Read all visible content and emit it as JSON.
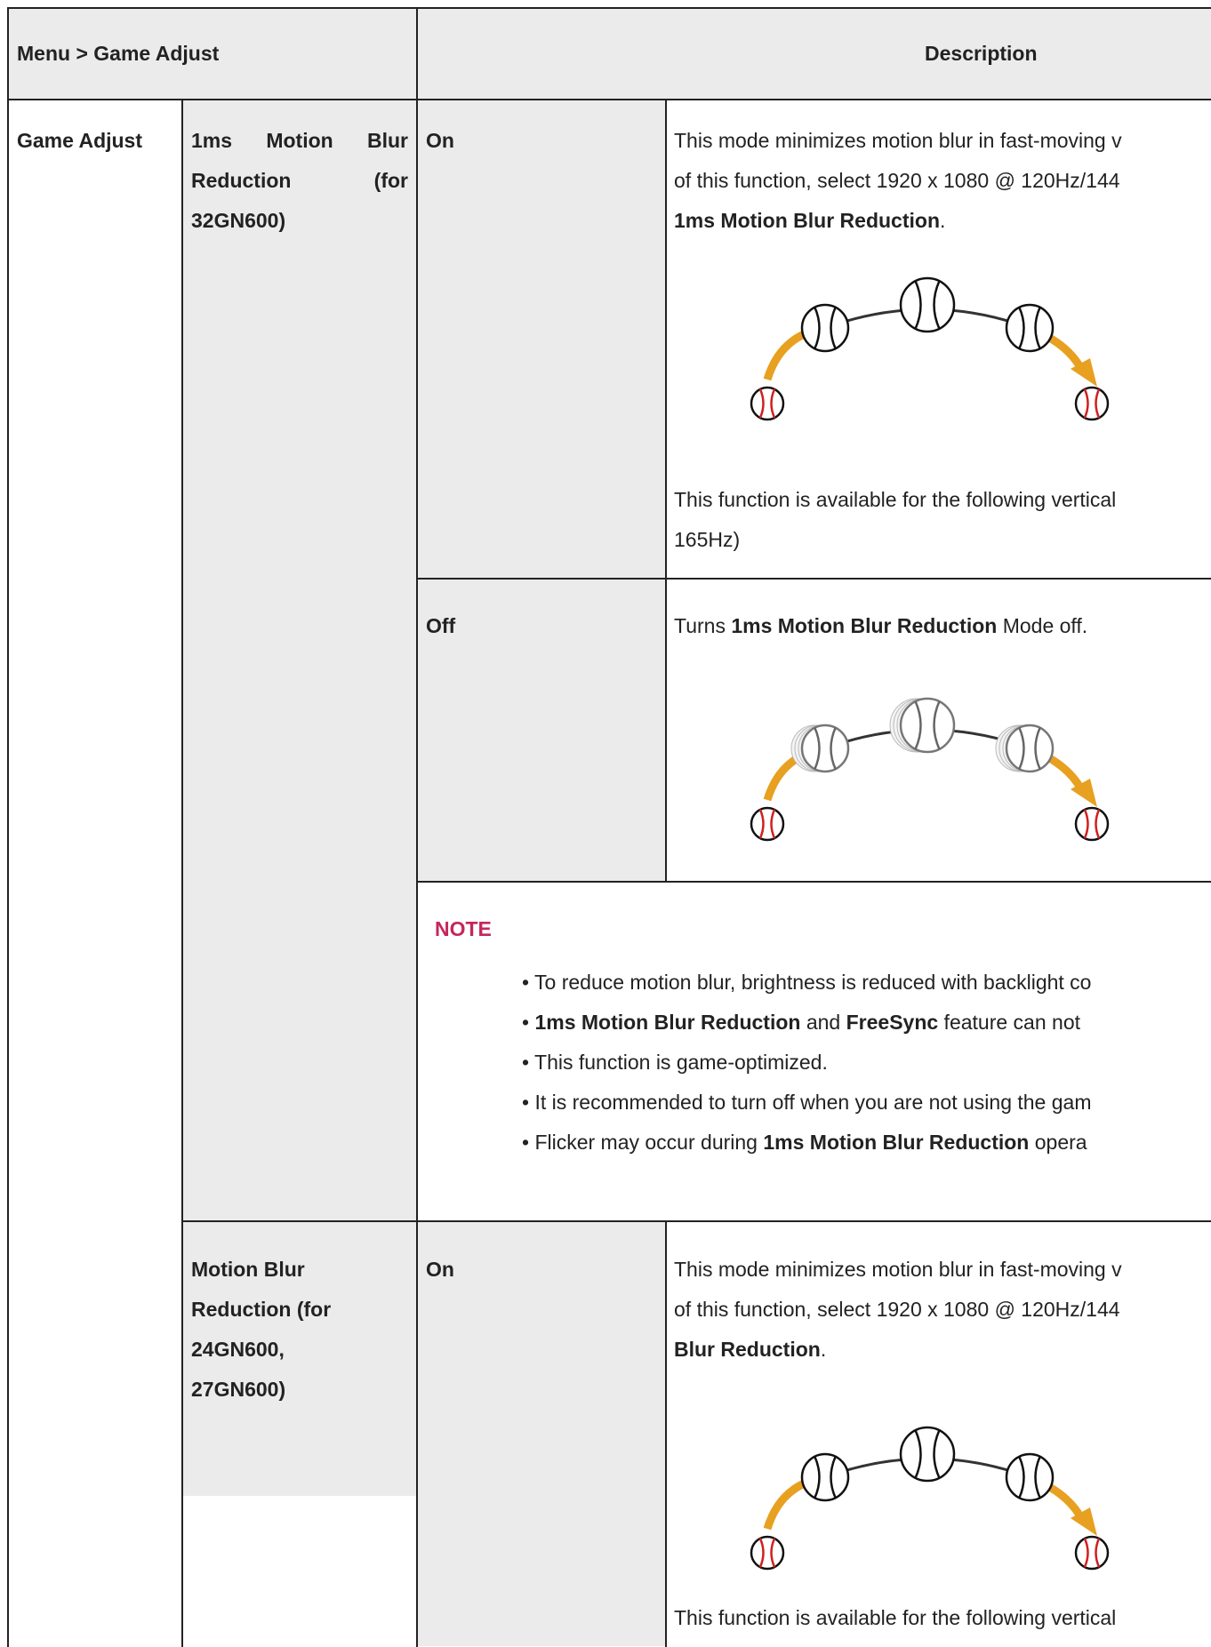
{
  "header": {
    "menu": "Menu > Game Adjust",
    "description": "Description"
  },
  "menu": "Game Adjust",
  "sections": [
    {
      "feature": [
        "1ms Motion Blur",
        "Reduction (for",
        "32GN600)"
      ],
      "options": [
        {
          "label": "On",
          "before": [
            [
              {
                "text": "This mode minimizes motion blur in fast-moving v",
                "bold": false
              }
            ],
            [
              {
                "text": "of this function, select 1920 x 1080 @ 120Hz/144",
                "bold": false
              }
            ],
            [
              {
                "text": "1ms Motion Blur Reduction",
                "bold": true
              },
              {
                "text": ".",
                "bold": false
              }
            ]
          ],
          "after": [
            [
              {
                "text": "This function is available for the following vertical",
                "bold": false
              }
            ],
            [
              {
                "text": "165Hz)",
                "bold": false
              }
            ]
          ]
        },
        {
          "label": "Off",
          "before": [
            [
              {
                "text": "Turns ",
                "bold": false
              },
              {
                "text": "1ms Motion Blur Reduction",
                "bold": true
              },
              {
                "text": " Mode off.",
                "bold": false
              }
            ]
          ],
          "after": []
        }
      ],
      "note": {
        "title": "NOTE",
        "bullets": [
          [
            {
              "text": "• To reduce motion blur, brightness is reduced with backlight co",
              "bold": false
            }
          ],
          [
            {
              "text": "• ",
              "bold": false
            },
            {
              "text": "1ms Motion Blur Reduction",
              "bold": true
            },
            {
              "text": " and ",
              "bold": false
            },
            {
              "text": "FreeSync",
              "bold": true
            },
            {
              "text": " feature can not",
              "bold": false
            }
          ],
          [
            {
              "text": "• This function is game-optimized.",
              "bold": false
            }
          ],
          [
            {
              "text": "• It is recommended to turn off when you are not using the gam",
              "bold": false
            }
          ],
          [
            {
              "text": "• Flicker may occur during ",
              "bold": false
            },
            {
              "text": "1ms Motion Blur Reduction",
              "bold": true
            },
            {
              "text": " opera",
              "bold": false
            }
          ]
        ]
      }
    },
    {
      "feature": [
        "Motion Blur",
        "Reduction (for",
        "24GN600,",
        "27GN600)"
      ],
      "options": [
        {
          "label": "On",
          "before": [
            [
              {
                "text": "This mode minimizes motion blur in fast-moving v",
                "bold": false
              }
            ],
            [
              {
                "text": "of this function, select 1920 x 1080 @ 120Hz/144",
                "bold": false
              }
            ],
            [
              {
                "text": "Blur Reduction",
                "bold": true
              },
              {
                "text": ".",
                "bold": false
              }
            ]
          ],
          "after": [
            [
              {
                "text": "This function is available for the following vertical",
                "bold": false
              }
            ]
          ]
        }
      ]
    }
  ]
}
